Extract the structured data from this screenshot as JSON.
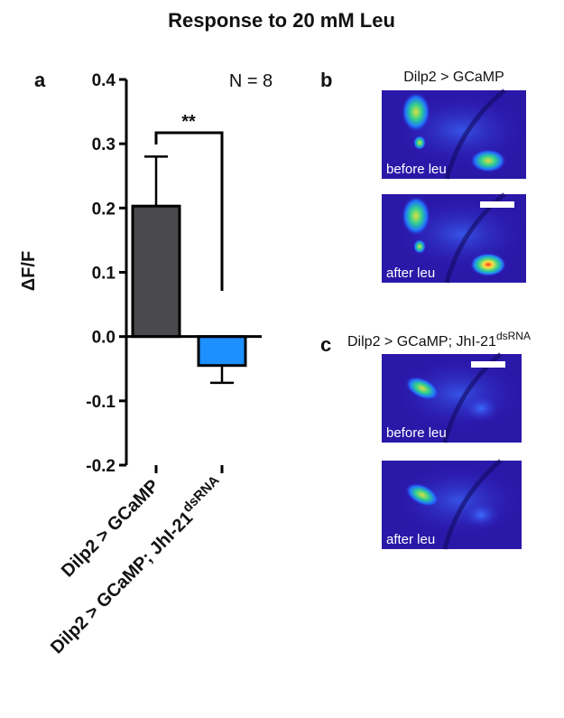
{
  "chart_data": {
    "type": "bar",
    "title": "Response to 20 mM Leu",
    "y_label": "ΔF/F",
    "categories": [
      "Dilp2 > GCaMP",
      "Dilp2 > GCaMP; JhI-21"
    ],
    "category_superscripts": [
      null,
      "dsRNA"
    ],
    "values": [
      0.203,
      -0.045
    ],
    "errors": [
      0.077,
      0.027
    ],
    "colors": [
      "#4a4a4c",
      "#1e8fff"
    ],
    "ylim": [
      -0.2,
      0.4
    ],
    "yticks": [
      -0.2,
      -0.1,
      {
        "value": 0,
        "label": "0.0"
      },
      0.1,
      0.2,
      0.3,
      0.4
    ],
    "annotations": {
      "panel": "a",
      "n": "N = 8",
      "significance": "**"
    }
  },
  "panels": [
    {
      "letter": "b",
      "title": "Dilp2 > GCaMP",
      "title_superscript": null,
      "images": [
        "before leu",
        "after leu"
      ]
    },
    {
      "letter": "c",
      "title": "Dilp2 > GCaMP; JhI-21",
      "title_superscript": "dsRNA",
      "images": [
        "before leu",
        "after leu"
      ]
    }
  ]
}
